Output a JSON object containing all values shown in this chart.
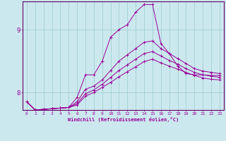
{
  "xlabel": "Windchill (Refroidissement éolien,°C)",
  "bg_color": "#cce8ef",
  "line_color": "#990099",
  "grid_color": "#99cccc",
  "axis_color": "#660066",
  "ylim": [
    7.72,
    9.45
  ],
  "xlim": [
    -0.5,
    23.5
  ],
  "yticks": [
    8,
    9
  ],
  "xticks": [
    0,
    1,
    2,
    3,
    4,
    5,
    6,
    7,
    8,
    9,
    10,
    11,
    12,
    13,
    14,
    15,
    16,
    17,
    18,
    19,
    20,
    21,
    22,
    23
  ],
  "series": [
    [
      7.85,
      7.72,
      7.73,
      7.74,
      7.75,
      7.76,
      7.92,
      8.28,
      8.28,
      8.5,
      8.88,
      9.0,
      9.08,
      9.28,
      9.4,
      9.4,
      8.78,
      8.62,
      8.42,
      8.3,
      8.28,
      8.28,
      8.27,
      8.27
    ],
    [
      7.85,
      7.72,
      7.73,
      7.74,
      7.75,
      7.76,
      7.85,
      8.05,
      8.1,
      8.2,
      8.35,
      8.5,
      8.6,
      8.7,
      8.8,
      8.82,
      8.7,
      8.62,
      8.54,
      8.46,
      8.38,
      8.34,
      8.32,
      8.3
    ],
    [
      7.85,
      7.72,
      7.73,
      7.74,
      7.75,
      7.76,
      7.82,
      7.98,
      8.04,
      8.13,
      8.24,
      8.35,
      8.44,
      8.53,
      8.62,
      8.65,
      8.58,
      8.51,
      8.45,
      8.38,
      8.32,
      8.28,
      8.26,
      8.24
    ],
    [
      7.85,
      7.72,
      7.73,
      7.74,
      7.75,
      7.76,
      7.8,
      7.94,
      8.0,
      8.08,
      8.16,
      8.25,
      8.33,
      8.41,
      8.49,
      8.53,
      8.47,
      8.42,
      8.37,
      8.32,
      8.27,
      8.23,
      8.21,
      8.2
    ]
  ]
}
